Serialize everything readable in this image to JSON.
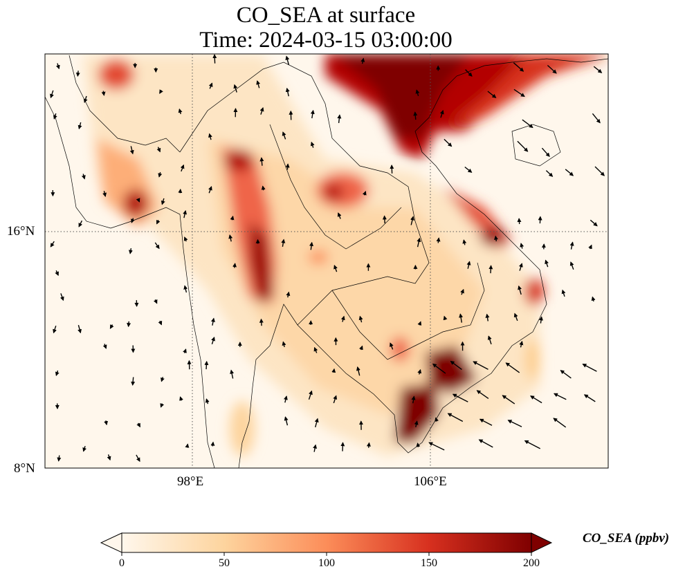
{
  "title": "CO_SEA at surface",
  "subtitle": "Time: 2024-03-15 03:00:00",
  "map": {
    "variable": "CO_SEA",
    "level": "surface",
    "lon_range": [
      91.8,
      115.5
    ],
    "lat_range": [
      8,
      25.4
    ],
    "lat_ticks": [
      "16°N",
      "8°N"
    ],
    "lon_ticks": [
      "98°E",
      "106°E"
    ],
    "gridlines": "dotted",
    "wind_vectors": true,
    "colormap": "OrRd",
    "colors": {
      "low": "#fff7ec",
      "mid": "#fc8d59",
      "high": "#7f0000",
      "coast": "#000000"
    }
  },
  "colorbar": {
    "label": "CO_SEA (ppbv)",
    "ticks": [
      "0",
      "50",
      "100",
      "150",
      "200"
    ],
    "range": [
      0,
      200
    ],
    "extend": "both"
  }
}
